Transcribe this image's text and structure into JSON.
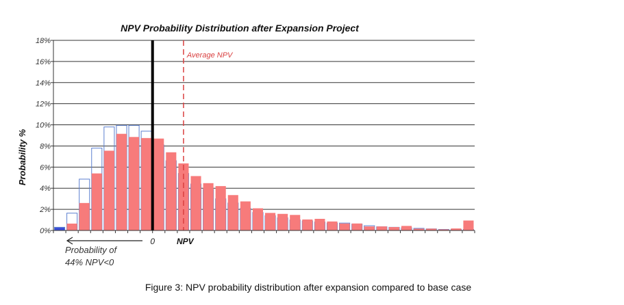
{
  "chart_data": {
    "type": "bar",
    "title": "NPV Probability Distribution after Expansion Project",
    "xlabel": "NPV",
    "ylabel": "Probability %",
    "ylim": [
      0,
      18
    ],
    "yticks": [
      "0%",
      "2%",
      "4%",
      "6%",
      "8%",
      "10%",
      "12%",
      "14%",
      "16%",
      "18%"
    ],
    "grid": true,
    "zero_label": "0",
    "bins_below_zero": 8,
    "average_npv_bins_from_zero": 2.5,
    "series": [
      {
        "style": "filled",
        "color": "#f77b7b",
        "values": [
          0,
          0.65,
          2.6,
          5.4,
          7.55,
          9.15,
          8.85,
          8.75,
          8.7,
          7.4,
          6.35,
          5.15,
          4.48,
          4.2,
          3.35,
          2.75,
          2.1,
          1.66,
          1.57,
          1.47,
          1.04,
          1.1,
          0.85,
          0.66,
          0.66,
          0.38,
          0.38,
          0.32,
          0.43,
          0.17,
          0.17,
          0.1,
          0.19,
          0.94
        ]
      },
      {
        "style": "outline",
        "color": "#5b7fd0",
        "values": [
          0.3,
          1.64,
          4.86,
          7.8,
          9.8,
          9.95,
          9.95,
          9.4,
          8.1,
          6.6,
          5.4,
          4.4,
          3.9,
          3.0,
          2.6,
          2.1,
          1.7,
          1.4,
          1.2,
          1.0,
          0.9,
          0.8,
          0.7,
          0.7,
          0.6,
          0.45,
          0.35,
          0.3,
          0.25,
          0.2,
          0.15,
          0.1,
          0.1,
          0.1
        ]
      }
    ],
    "annotations": {
      "average_npv": "Average NPV",
      "prob_line1": "Probability of",
      "prob_line2": "44% NPV<0"
    }
  },
  "caption": "Figure 3: NPV probability distribution after expansion compared to base case"
}
